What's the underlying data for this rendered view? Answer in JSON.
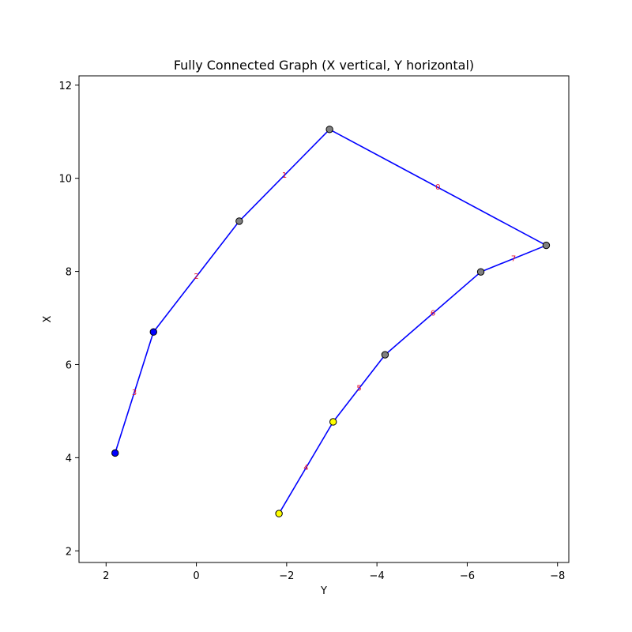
{
  "chart_data": {
    "type": "scatter",
    "title": "Fully Connected Graph (X vertical, Y horizontal)",
    "xlabel": "Y",
    "ylabel": "X",
    "x_axis": {
      "lim": [
        2.6,
        -8.25
      ],
      "inverted": true,
      "ticks": [
        2,
        0,
        -2,
        -4,
        -6,
        -8
      ],
      "tick_labels": [
        "2",
        "0",
        "−2",
        "−4",
        "−6",
        "−8"
      ]
    },
    "y_axis": {
      "lim": [
        1.75,
        12.2
      ],
      "ticks": [
        2,
        4,
        6,
        8,
        10,
        12
      ],
      "tick_labels": [
        "2",
        "4",
        "6",
        "8",
        "10",
        "12"
      ]
    },
    "grid": false,
    "nodes": [
      {
        "y": 1.8,
        "x": 4.1,
        "color": "#0000ff"
      },
      {
        "y": 0.95,
        "x": 6.7,
        "color": "#0000ff"
      },
      {
        "y": -0.95,
        "x": 9.08,
        "color": "#808080"
      },
      {
        "y": -2.95,
        "x": 11.05,
        "color": "#808080"
      },
      {
        "y": -7.75,
        "x": 8.56,
        "color": "#808080"
      },
      {
        "y": -6.3,
        "x": 7.99,
        "color": "#808080"
      },
      {
        "y": -4.18,
        "x": 6.21,
        "color": "#808080"
      },
      {
        "y": -3.03,
        "x": 4.77,
        "color": "#ffff00"
      },
      {
        "y": -1.83,
        "x": 2.8,
        "color": "#ffff00"
      }
    ],
    "edges": [
      {
        "from": 3,
        "to": 4,
        "label": "0"
      },
      {
        "from": 2,
        "to": 3,
        "label": "1"
      },
      {
        "from": 1,
        "to": 2,
        "label": "2"
      },
      {
        "from": 0,
        "to": 1,
        "label": "3"
      },
      {
        "from": 8,
        "to": 7,
        "label": "4"
      },
      {
        "from": 7,
        "to": 6,
        "label": "5"
      },
      {
        "from": 6,
        "to": 5,
        "label": "6"
      },
      {
        "from": 5,
        "to": 4,
        "label": "7"
      }
    ],
    "edge_color": "#0000ff",
    "edge_label_color": "#e8112d"
  }
}
